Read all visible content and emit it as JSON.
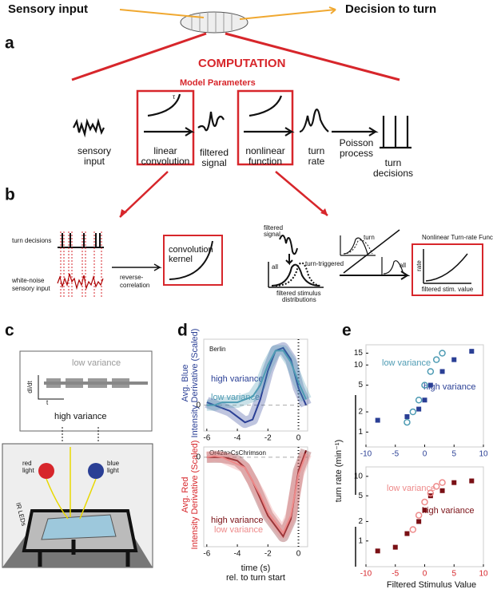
{
  "panel_a": {
    "label": "a",
    "input": "Sensory input",
    "output": "Decision to turn",
    "computation": "COMPUTATION",
    "model_parameters": "Model Parameters",
    "steps": [
      [
        "sensory",
        "input"
      ],
      [
        "linear",
        "convolution"
      ],
      [
        "filtered",
        "signal"
      ],
      [
        "nonlinear",
        "function"
      ],
      [
        "turn",
        "rate"
      ],
      [
        "Poisson",
        "process"
      ],
      [
        "turn",
        "decisions"
      ]
    ],
    "tau": "τ"
  },
  "panel_b": {
    "label": "b",
    "turn_decisions": "turn decisions",
    "white_noise": [
      "white-noise",
      "sensory input"
    ],
    "reverse": [
      "reverse-",
      "correlation"
    ],
    "kernel": [
      "convolution",
      "kernel"
    ],
    "filtered_signal": [
      "filtered",
      "signal"
    ],
    "all": "all",
    "turn_triggered": "turn-triggered",
    "distributions": [
      "filtered stimulus",
      "distributions"
    ],
    "turn": "turn",
    "all2": "all",
    "nl_title": "Nonlinear Turn-rate Function",
    "rate": "rate",
    "stim": "filtered stim. value",
    "t": "t"
  },
  "panel_c": {
    "label": "c",
    "low": "low variance",
    "high": "high variance",
    "didt": "dI/dt",
    "t": "t",
    "red_light": [
      "red",
      "light"
    ],
    "blue_light": [
      "blue",
      "light"
    ],
    "ir": "IR LEDs"
  },
  "panel_d": {
    "label": "d",
    "xlabel": [
      "time (s)",
      "rel. to turn start"
    ],
    "top": {
      "type": "line",
      "ylabel": [
        "Avg. Blue",
        "Intensity Derivative (Scaled)"
      ],
      "annotation": "Berlin",
      "x": [
        -6,
        -5.5,
        -5,
        -4.5,
        -4,
        -3.5,
        -3,
        -2.5,
        -2,
        -1.5,
        -1,
        -0.5,
        0,
        0.5
      ],
      "xlim": [
        -6.2,
        0.6
      ],
      "xticks": [
        -6,
        -4,
        -2,
        0
      ],
      "ylim": [
        -0.45,
        1.15
      ],
      "yticks": [
        0
      ],
      "series": [
        {
          "name": "high variance",
          "color": "#2a3f95",
          "values": [
            0.05,
            0.0,
            -0.05,
            -0.1,
            -0.2,
            -0.3,
            -0.25,
            0.1,
            0.6,
            0.95,
            1.0,
            0.8,
            0.3,
            0.0
          ]
        },
        {
          "name": "low variance",
          "color": "#4f9cb4",
          "values": [
            0.0,
            0.0,
            0.05,
            0.05,
            0.05,
            0.1,
            0.15,
            0.35,
            0.7,
            0.95,
            0.95,
            0.75,
            0.4,
            0.1
          ]
        }
      ]
    },
    "bottom": {
      "type": "line",
      "ylabel": [
        "Avg. Red",
        "Intensity Derivative (Scaled)"
      ],
      "annotation": "Or42a>CsChrimson",
      "x": [
        -6,
        -5.5,
        -5,
        -4.5,
        -4,
        -3.5,
        -3,
        -2.5,
        -2,
        -1.5,
        -1,
        -0.5,
        0,
        0.5
      ],
      "xlim": [
        -6.2,
        0.6
      ],
      "xticks": [
        -6,
        -4,
        -2,
        0
      ],
      "ylim": [
        -1.3,
        0.15
      ],
      "yticks": [
        0
      ],
      "series": [
        {
          "name": "high variance",
          "color": "#7a1015",
          "values": [
            0,
            0,
            0,
            -0.02,
            -0.05,
            -0.15,
            -0.35,
            -0.6,
            -0.85,
            -1.0,
            -1.15,
            -0.9,
            -0.2,
            0.1
          ]
        },
        {
          "name": "low variance",
          "color": "#ee8a8a",
          "values": [
            0,
            0.02,
            0,
            -0.05,
            -0.1,
            -0.15,
            -0.35,
            -0.55,
            -0.8,
            -0.95,
            -1.1,
            -0.85,
            -0.25,
            0.05
          ]
        }
      ]
    }
  },
  "panel_e": {
    "label": "e",
    "xlabel": "Filtered Stimulus Value",
    "ylabel": "turn rate (min⁻¹)",
    "top": {
      "type": "scatter",
      "log_y": true,
      "xlim": [
        -10,
        10
      ],
      "xticks": [
        -10,
        -5,
        0,
        5,
        10
      ],
      "ylim": [
        0.6,
        20
      ],
      "yticks": [
        1,
        2,
        5,
        10,
        15
      ],
      "tick_color": "#2a3f95",
      "series": [
        {
          "name": "high variance",
          "color": "#2a3f95",
          "marker": "square",
          "x": [
            -8,
            -3,
            -1,
            0,
            1,
            3,
            5,
            8
          ],
          "values": [
            1.5,
            1.7,
            2.2,
            3,
            5,
            8,
            12,
            16
          ]
        },
        {
          "name": "low variance",
          "color": "#4f9cb4",
          "marker": "circle",
          "x": [
            -3,
            -2,
            -1,
            0,
            1,
            2,
            3
          ],
          "values": [
            1.4,
            2,
            3,
            5,
            8,
            12,
            15
          ]
        }
      ]
    },
    "bottom": {
      "type": "scatter",
      "log_y": true,
      "xlim": [
        -10,
        10
      ],
      "xticks": [
        -10,
        -5,
        0,
        5,
        10
      ],
      "ylim": [
        0.4,
        14
      ],
      "yticks": [
        1,
        2,
        5,
        10
      ],
      "tick_color": "#d7262b",
      "series": [
        {
          "name": "high variance",
          "color": "#7a1015",
          "marker": "square",
          "x": [
            -8,
            -5,
            -3,
            -1,
            0,
            1,
            3,
            5,
            8
          ],
          "values": [
            0.7,
            0.8,
            1.3,
            2,
            3,
            5,
            6,
            8,
            8.5
          ]
        },
        {
          "name": "low variance",
          "color": "#ee8a8a",
          "marker": "circle",
          "x": [
            -2,
            -1,
            0,
            1,
            2,
            3
          ],
          "values": [
            1.5,
            2.5,
            4,
            5.5,
            7,
            8
          ]
        }
      ]
    }
  }
}
